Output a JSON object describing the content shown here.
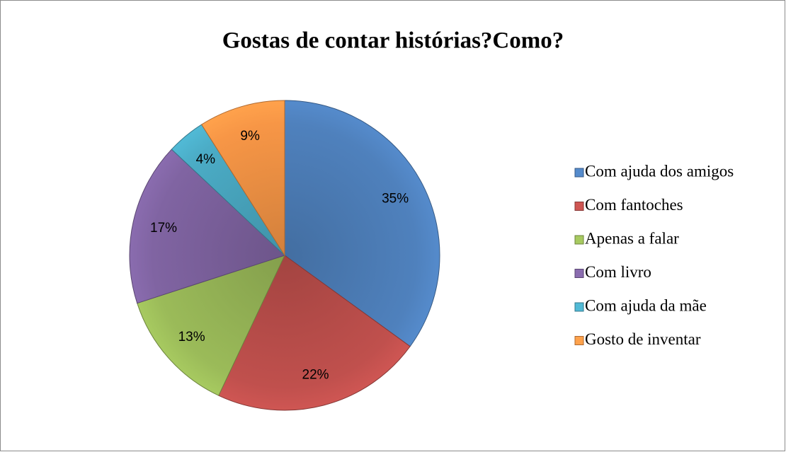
{
  "chart_data": {
    "type": "pie",
    "title": "Gostas de contar histórias?Como?",
    "categories": [
      "Com ajuda dos amigos",
      "Com fantoches",
      "Apenas a falar",
      "Com livro",
      "Com ajuda da mãe",
      "Gosto de inventar"
    ],
    "values": [
      35,
      22,
      13,
      17,
      4,
      9
    ],
    "value_labels": [
      "35%",
      "22%",
      "13%",
      "17%",
      "4%",
      "9%"
    ],
    "colors": [
      "#4f81bd",
      "#c0504d",
      "#9bbb59",
      "#8064a2",
      "#4bacc6",
      "#f79646"
    ],
    "legend": "right"
  }
}
